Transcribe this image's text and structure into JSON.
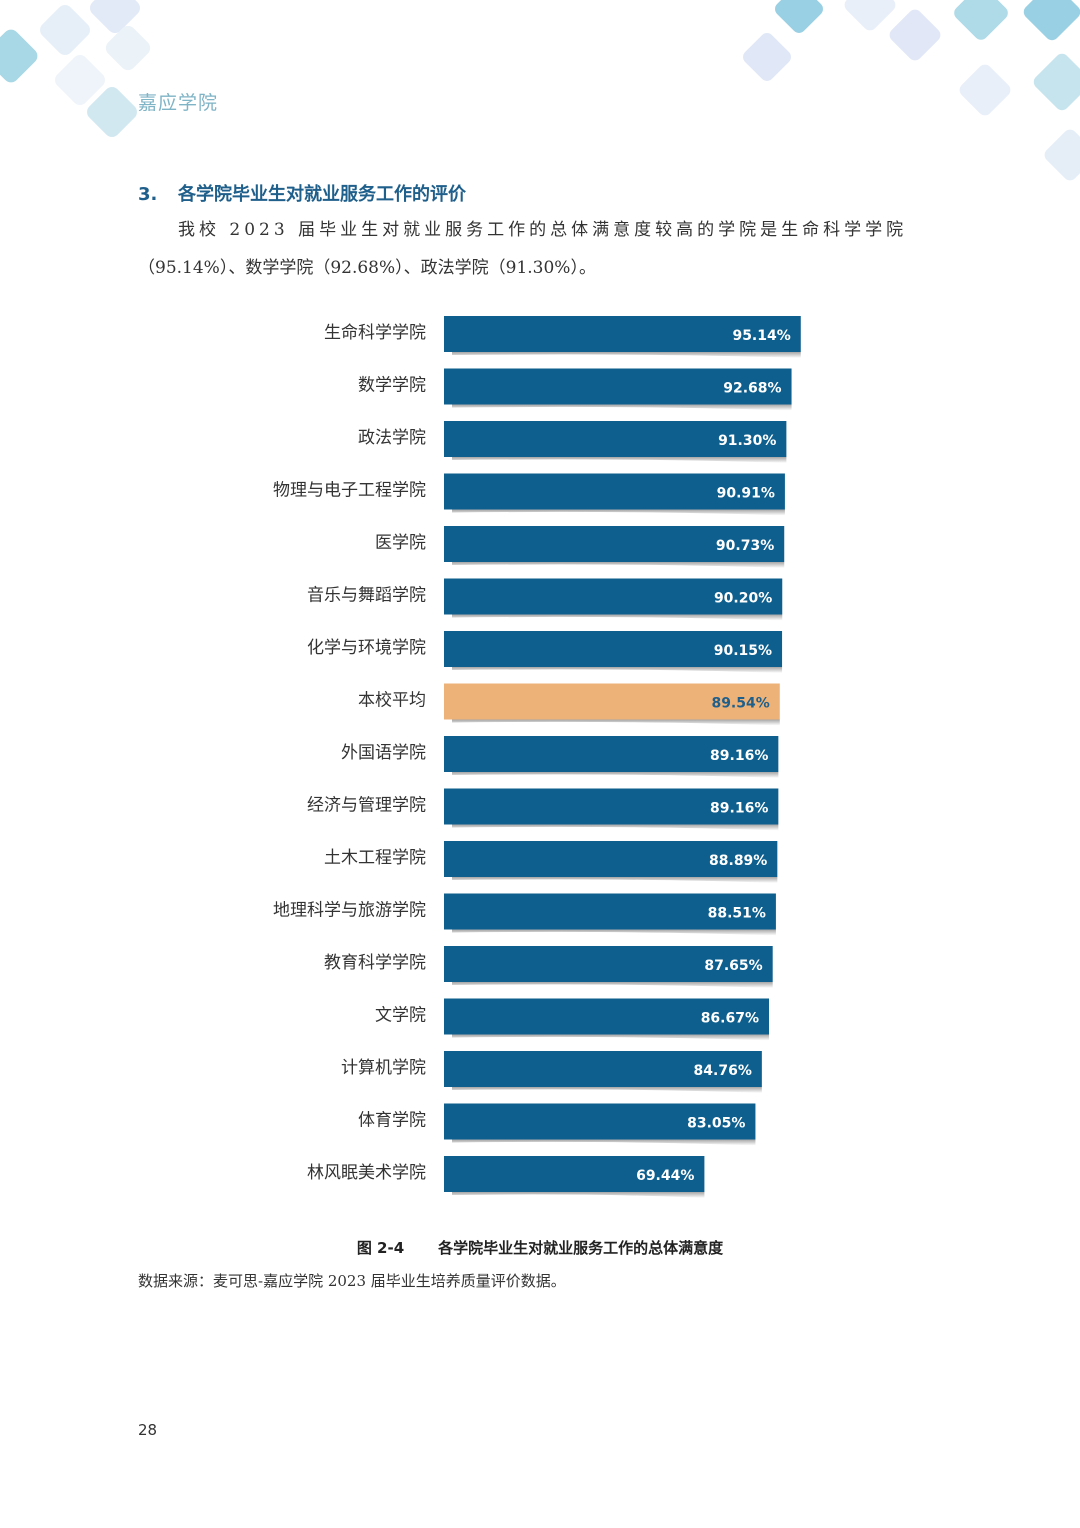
{
  "header": {
    "brand": "嘉应学院"
  },
  "section": {
    "number": "3.",
    "title": "各学院毕业生对就业服务工作的评价",
    "paragraph_line1": "我校 2023 届毕业生对就业服务工作的总体满意度较高的学院是生命科学学院",
    "paragraph_line2": "（95.14%）、数学学院（92.68%）、政法学院（91.30%）。"
  },
  "chart_data": {
    "type": "bar",
    "orientation": "horizontal",
    "title": "各学院毕业生对就业服务工作的总体满意度",
    "xlabel": "",
    "ylabel": "",
    "grid": false,
    "categories": [
      "生命科学学院",
      "数学学院",
      "政法学院",
      "物理与电子工程学院",
      "医学院",
      "音乐与舞蹈学院",
      "化学与环境学院",
      "本校平均",
      "外国语学院",
      "经济与管理学院",
      "土木工程学院",
      "地理科学与旅游学院",
      "教育科学学院",
      "文学院",
      "计算机学院",
      "体育学院",
      "林风眠美术学院"
    ],
    "values": [
      95.14,
      92.68,
      91.3,
      90.91,
      90.73,
      90.2,
      90.15,
      89.54,
      89.16,
      89.16,
      88.89,
      88.51,
      87.65,
      86.67,
      84.76,
      83.05,
      69.44
    ],
    "value_labels": [
      "95.14%",
      "92.68%",
      "91.30%",
      "90.91%",
      "90.73%",
      "90.20%",
      "90.15%",
      "89.54%",
      "89.16%",
      "89.16%",
      "88.89%",
      "88.51%",
      "87.65%",
      "86.67%",
      "84.76%",
      "83.05%",
      "69.44%"
    ],
    "highlight_category": "本校平均",
    "colors": {
      "bar": "#0e5f8e",
      "highlight": "#edb278",
      "label": "#ffffff",
      "highlight_label": "#1f5f8b"
    }
  },
  "figure": {
    "number": "图 2-4",
    "caption": "各学院毕业生对就业服务工作的总体满意度"
  },
  "source": "数据来源：麦可思-嘉应学院 2023 届毕业生培养质量评价数据。",
  "page_number": "28"
}
